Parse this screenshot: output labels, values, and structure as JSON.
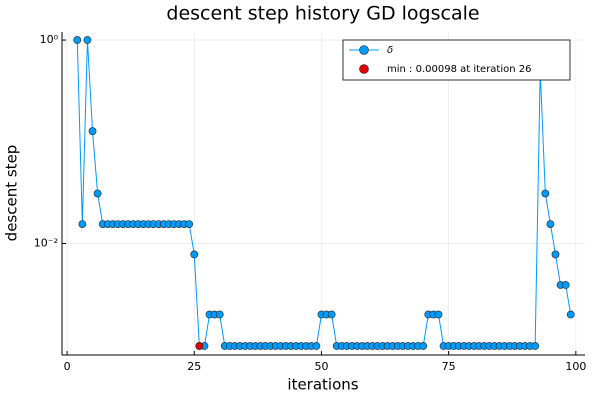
{
  "chart_data": {
    "type": "line",
    "title": "descent step history GD logscale",
    "x_label": "iterations",
    "y_label": "descent step",
    "x": [
      2,
      3,
      4,
      5,
      6,
      7,
      8,
      9,
      10,
      11,
      12,
      13,
      14,
      15,
      16,
      17,
      18,
      19,
      20,
      21,
      22,
      23,
      24,
      25,
      26,
      27,
      28,
      29,
      30,
      31,
      32,
      33,
      34,
      35,
      36,
      37,
      38,
      39,
      40,
      41,
      42,
      43,
      44,
      45,
      46,
      47,
      48,
      49,
      50,
      51,
      52,
      53,
      54,
      55,
      56,
      57,
      58,
      59,
      60,
      61,
      62,
      63,
      64,
      65,
      66,
      67,
      68,
      69,
      70,
      71,
      72,
      73,
      74,
      75,
      76,
      77,
      78,
      79,
      80,
      81,
      82,
      83,
      84,
      85,
      86,
      87,
      88,
      89,
      90,
      91,
      92,
      93,
      94,
      95,
      96,
      97,
      98,
      99
    ],
    "series": [
      {
        "name": "δ",
        "color": "#009af9",
        "values": [
          1,
          0.0155,
          1,
          0.127,
          0.031,
          0.0155,
          0.0155,
          0.0155,
          0.0155,
          0.0155,
          0.0155,
          0.0155,
          0.0155,
          0.0155,
          0.0155,
          0.0155,
          0.0155,
          0.0155,
          0.0155,
          0.0155,
          0.0155,
          0.0155,
          0.0155,
          0.0078,
          0.00098,
          0.00098,
          0.002,
          0.002,
          0.002,
          0.00098,
          0.00098,
          0.00098,
          0.00098,
          0.00098,
          0.00098,
          0.00098,
          0.00098,
          0.00098,
          0.00098,
          0.00098,
          0.00098,
          0.00098,
          0.00098,
          0.00098,
          0.00098,
          0.00098,
          0.00098,
          0.00098,
          0.002,
          0.002,
          0.002,
          0.00098,
          0.00098,
          0.00098,
          0.00098,
          0.00098,
          0.00098,
          0.00098,
          0.00098,
          0.00098,
          0.00098,
          0.00098,
          0.00098,
          0.00098,
          0.00098,
          0.00098,
          0.00098,
          0.00098,
          0.00098,
          0.002,
          0.002,
          0.002,
          0.00098,
          0.00098,
          0.00098,
          0.00098,
          0.00098,
          0.00098,
          0.00098,
          0.00098,
          0.00098,
          0.00098,
          0.00098,
          0.00098,
          0.00098,
          0.00098,
          0.00098,
          0.00098,
          0.00098,
          0.00098,
          0.00098,
          0.5,
          0.031,
          0.0155,
          0.0078,
          0.0039,
          0.0039,
          0.002
        ]
      },
      {
        "name": "min : 0.00098 at iteration 26",
        "color": "#e00000",
        "x": [
          26
        ],
        "values": [
          0.00098
        ]
      }
    ],
    "xlim": [
      -1,
      101.8
    ],
    "xticks": [
      0,
      25,
      50,
      75,
      100
    ],
    "ylim": [
      0.0008,
      1.2
    ],
    "yscale": "log",
    "yticks": [
      {
        "value": 0.01,
        "label": "10⁻²"
      },
      {
        "value": 1,
        "label": "10⁰"
      }
    ],
    "grid": true,
    "legend": "top-right"
  }
}
